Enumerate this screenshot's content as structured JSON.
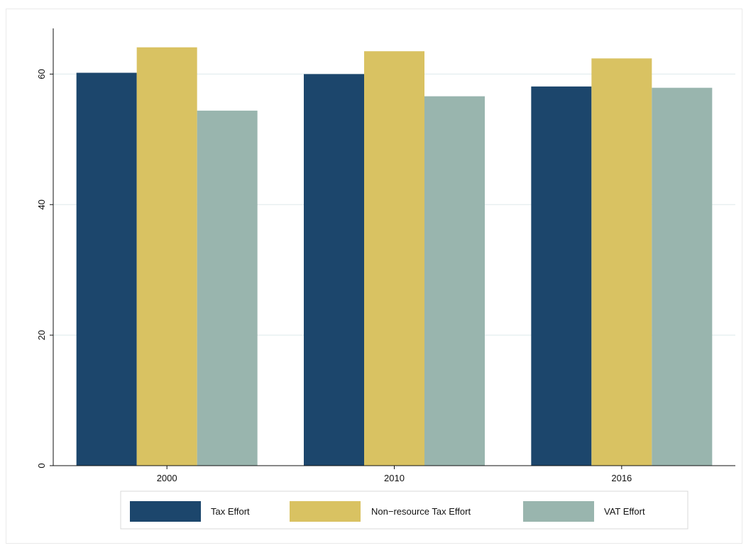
{
  "chart_data": {
    "type": "bar",
    "title": "",
    "xlabel": "",
    "ylabel": "",
    "categories": [
      "2000",
      "2010",
      "2016"
    ],
    "ylim": [
      0,
      67
    ],
    "yticks": [
      0,
      20,
      40,
      60
    ],
    "grid": true,
    "legend_position": "bottom",
    "series": [
      {
        "name": "Tax Effort",
        "values": [
          60.2,
          60.0,
          58.1
        ],
        "color": "#1c466c"
      },
      {
        "name": "Non−resource Tax Effort",
        "values": [
          64.1,
          63.5,
          62.4
        ],
        "color": "#d9c262"
      },
      {
        "name": "VAT Effort",
        "values": [
          54.4,
          56.6,
          57.9
        ],
        "color": "#99b5ae"
      }
    ]
  }
}
